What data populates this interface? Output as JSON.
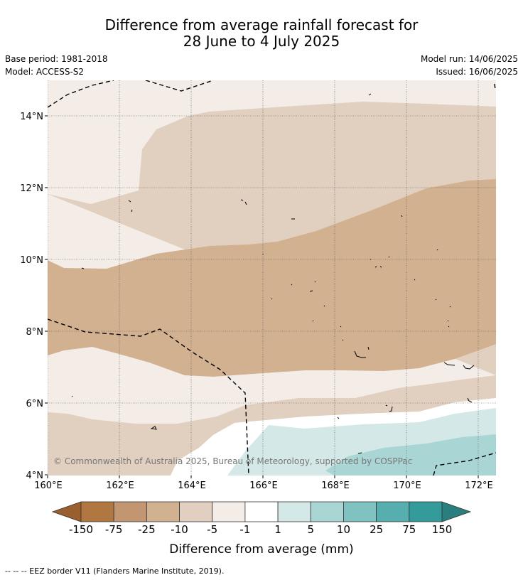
{
  "header": {
    "title_line1": "Difference from average rainfall forecast for",
    "title_line2": "28 June to 4 July 2025",
    "base_period": "Base period: 1981-2018",
    "model": "Model: ACCESS-S2",
    "model_run": "Model run: 14/06/2025",
    "issued": "Issued: 16/06/2025"
  },
  "map": {
    "lat_labels": [
      "14°N",
      "12°N",
      "10°N",
      "8°N",
      "6°N",
      "4°N"
    ],
    "lon_labels": [
      "160°E",
      "162°E",
      "164°E",
      "166°E",
      "168°E",
      "170°E",
      "172°E"
    ],
    "copyright": "© Commonwealth of Australia 2025, Bureau of Meteorology, supported by COSPPac"
  },
  "colorbar": {
    "ticks": [
      "-150",
      "-75",
      "-25",
      "-10",
      "-5",
      "-1",
      "1",
      "5",
      "10",
      "25",
      "75",
      "150"
    ],
    "colors": [
      "#9a5f2e",
      "#b07840",
      "#c29670",
      "#d2b191",
      "#e1cfbf",
      "#f4ede7",
      "#ffffff",
      "#d3e8e7",
      "#a9d5d5",
      "#80c1c2",
      "#56aeae",
      "#339b9a",
      "#2a7f7e"
    ],
    "label": "Difference from average (mm)"
  },
  "footer": {
    "legend": "--  --  -- EEZ border V11 (Flanders Marine Institute, 2019)."
  }
}
